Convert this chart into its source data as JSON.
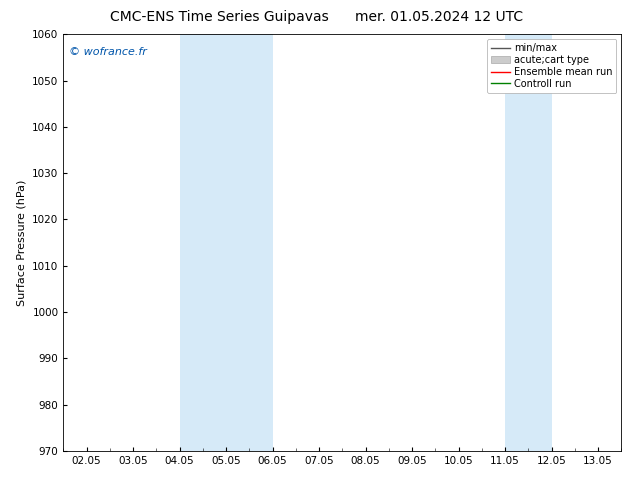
{
  "title": "CMC-ENS Time Series Guipavas      mer. 01.05.2024 12 UTC",
  "ylabel": "Surface Pressure (hPa)",
  "ylim": [
    970,
    1060
  ],
  "yticks": [
    970,
    980,
    990,
    1000,
    1010,
    1020,
    1030,
    1040,
    1050,
    1060
  ],
  "x_tick_labels": [
    "02.05",
    "03.05",
    "04.05",
    "05.05",
    "06.05",
    "07.05",
    "08.05",
    "09.05",
    "10.05",
    "11.05",
    "12.05",
    "13.05"
  ],
  "x_start_date": "2024-05-02",
  "x_end_date": "2024-05-13",
  "shaded_bands": [
    {
      "xmin": "2024-05-04",
      "xmax": "2024-05-06"
    },
    {
      "xmin": "2024-05-11",
      "xmax": "2024-05-12"
    }
  ],
  "band_color": "#d6eaf8",
  "watermark": "© wofrance.fr",
  "watermark_color": "#0055aa",
  "legend_entries": [
    {
      "label": "min/max",
      "color": "#555555",
      "type": "line"
    },
    {
      "label": "acute;cart type",
      "color": "#cccccc",
      "type": "filled"
    },
    {
      "label": "Ensemble mean run",
      "color": "#ff0000",
      "type": "line"
    },
    {
      "label": "Controll run",
      "color": "#008000",
      "type": "line"
    }
  ],
  "title_fontsize": 10,
  "axis_fontsize": 8,
  "tick_fontsize": 7.5,
  "bg_color": "#ffffff",
  "plot_bg_color": "#ffffff",
  "legend_fontsize": 7,
  "legend_loc": "upper right"
}
